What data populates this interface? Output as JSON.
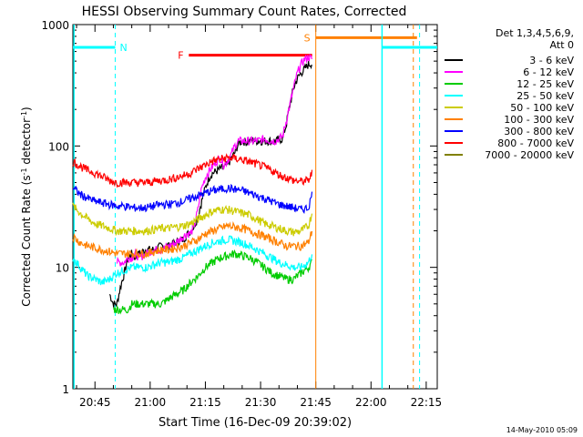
{
  "chart_data": {
    "type": "line",
    "title": "HESSI Observing Summary Count Rates, Corrected",
    "xlabel": "Start Time (16-Dec-09 20:39:02)",
    "ylabel": "Corrected Count Rate (s",
    "ylabel_sup1": "-1",
    "ylabel_mid": " detector",
    "ylabel_sup2": "-1",
    "ylabel_end": ")",
    "yscale": "log",
    "ylim": [
      1,
      1000
    ],
    "xlim_minutes": [
      0,
      99
    ],
    "x_units": "minutes since 20:39:02",
    "xticks": [
      {
        "t": 6,
        "label": "20:45"
      },
      {
        "t": 21,
        "label": "21:00"
      },
      {
        "t": 36,
        "label": "21:15"
      },
      {
        "t": 51,
        "label": "21:30"
      },
      {
        "t": 66,
        "label": "21:45"
      },
      {
        "t": 81,
        "label": "22:00"
      },
      {
        "t": 96,
        "label": "22:15"
      }
    ],
    "yticks": [
      {
        "v": 1,
        "label": "1"
      },
      {
        "v": 10,
        "label": "10"
      },
      {
        "v": 100,
        "label": "100"
      },
      {
        "v": 1000,
        "label": "1000"
      }
    ],
    "legend": {
      "header": [
        "Det 1,3,4,5,6,9,",
        "Att 0"
      ],
      "placement": "right"
    },
    "series": [
      {
        "name": "3 - 6 keV",
        "color": "#000000",
        "x": [
          10,
          11,
          12,
          13,
          14,
          15,
          16,
          17,
          18,
          20,
          22,
          24,
          26,
          28,
          30,
          32,
          33,
          34,
          35,
          36,
          37,
          38,
          39,
          40,
          41,
          42,
          43,
          44,
          45,
          46,
          47,
          48,
          49,
          50,
          51,
          52,
          53,
          54,
          55,
          56,
          57,
          58,
          59,
          60,
          61,
          62,
          63,
          64,
          65
        ],
        "y": [
          6,
          5,
          5,
          7,
          9,
          12,
          13,
          12,
          13,
          14,
          14,
          15,
          15,
          16,
          17,
          20,
          22,
          26,
          35,
          45,
          55,
          60,
          62,
          65,
          66,
          70,
          78,
          88,
          105,
          110,
          108,
          110,
          112,
          110,
          110,
          110,
          110,
          110,
          110,
          112,
          115,
          150,
          220,
          300,
          360,
          400,
          430,
          470,
          480
        ]
      },
      {
        "name": "6 - 12 keV",
        "color": "#ff00ff",
        "x": [
          12,
          13,
          14,
          15,
          16,
          17,
          18,
          20,
          22,
          24,
          26,
          28,
          30,
          31,
          32,
          33,
          34,
          35,
          36,
          37,
          38,
          39,
          40,
          41,
          42,
          43,
          44,
          45,
          46,
          47,
          48,
          49,
          50,
          51,
          52,
          53,
          54,
          55,
          56,
          57,
          58,
          59,
          60,
          61,
          62,
          63,
          64,
          65
        ],
        "y": [
          11,
          11,
          11,
          12,
          12,
          13,
          12,
          13,
          14,
          14,
          15,
          16,
          18,
          19,
          19,
          22,
          30,
          45,
          55,
          62,
          68,
          75,
          80,
          70,
          75,
          85,
          100,
          110,
          110,
          110,
          110,
          110,
          110,
          112,
          115,
          112,
          110,
          110,
          115,
          120,
          160,
          220,
          300,
          400,
          470,
          520,
          540,
          520
        ]
      },
      {
        "name": "12 - 25 keV",
        "color": "#00cc00",
        "x": [
          11,
          12,
          13,
          14,
          15,
          16,
          17,
          18,
          20,
          22,
          24,
          26,
          28,
          30,
          32,
          34,
          36,
          38,
          40,
          42,
          44,
          46,
          48,
          50,
          52,
          54,
          56,
          58,
          60,
          62,
          64,
          65
        ],
        "y": [
          4.5,
          4.5,
          4.5,
          4.5,
          4.5,
          5,
          5,
          5,
          5,
          5,
          5,
          5.5,
          6,
          6.5,
          7.5,
          8.5,
          10,
          11,
          12,
          12.5,
          13,
          12.5,
          12,
          11,
          10,
          9,
          8.5,
          8,
          8,
          9,
          10,
          11
        ]
      },
      {
        "name": "25 - 50 keV",
        "color": "#00ffff",
        "x": [
          0,
          2,
          4,
          6,
          8,
          10,
          12,
          14,
          16,
          18,
          20,
          22,
          24,
          26,
          28,
          30,
          32,
          34,
          36,
          38,
          40,
          42,
          44,
          46,
          48,
          50,
          52,
          54,
          56,
          58,
          60,
          62,
          64,
          65
        ],
        "y": [
          12,
          10,
          8.5,
          8,
          7.5,
          8,
          9,
          9.5,
          10,
          10,
          10,
          10.5,
          11,
          11,
          11.5,
          12,
          13,
          14,
          15,
          16,
          16.5,
          17,
          16.5,
          16,
          15,
          14,
          13,
          12,
          11,
          10.5,
          10,
          10,
          11,
          13
        ]
      },
      {
        "name": "50 - 100 keV",
        "color": "#cccc00",
        "x": [
          0,
          2,
          4,
          6,
          8,
          10,
          12,
          14,
          16,
          18,
          20,
          22,
          24,
          26,
          28,
          30,
          32,
          34,
          36,
          38,
          40,
          42,
          44,
          46,
          48,
          50,
          52,
          54,
          56,
          58,
          60,
          62,
          64,
          65
        ],
        "y": [
          32,
          28,
          25,
          23,
          22,
          21,
          20,
          20,
          20,
          20,
          20,
          20.5,
          21,
          21,
          21.5,
          22,
          23,
          25,
          27,
          29,
          30,
          30,
          29,
          28,
          27,
          25,
          23,
          22,
          21,
          20,
          19.5,
          20,
          22,
          28
        ]
      },
      {
        "name": "100 - 300 keV",
        "color": "#ff8000",
        "x": [
          0,
          2,
          4,
          6,
          8,
          10,
          12,
          14,
          16,
          18,
          20,
          22,
          24,
          26,
          28,
          30,
          32,
          34,
          36,
          38,
          40,
          42,
          44,
          46,
          48,
          50,
          52,
          54,
          56,
          58,
          60,
          62,
          64,
          65
        ],
        "y": [
          18,
          16,
          15,
          14.5,
          14,
          13.5,
          13,
          13,
          13,
          13,
          13,
          13.5,
          14,
          14,
          14.5,
          15,
          16,
          17,
          19,
          20,
          21,
          22,
          21.5,
          21,
          20,
          19,
          18,
          17,
          16,
          15,
          15,
          15,
          16,
          20
        ]
      },
      {
        "name": "300 - 800 keV",
        "color": "#0000ff",
        "x": [
          0,
          2,
          4,
          6,
          8,
          10,
          12,
          14,
          16,
          18,
          20,
          22,
          24,
          26,
          28,
          30,
          32,
          34,
          36,
          38,
          40,
          42,
          44,
          46,
          48,
          50,
          52,
          54,
          56,
          58,
          60,
          62,
          64,
          65
        ],
        "y": [
          45,
          40,
          37,
          35,
          34,
          33,
          32,
          32,
          31,
          31,
          31,
          32,
          33,
          33,
          34,
          35,
          37,
          39,
          41,
          43,
          44,
          45,
          44,
          43,
          41,
          39,
          37,
          35,
          33,
          32,
          31,
          30,
          31,
          40
        ]
      },
      {
        "name": "800 - 7000 keV",
        "color": "#ff0000",
        "x": [
          0,
          2,
          4,
          6,
          8,
          10,
          12,
          14,
          16,
          18,
          20,
          22,
          24,
          26,
          28,
          30,
          32,
          34,
          36,
          38,
          40,
          42,
          44,
          46,
          48,
          50,
          52,
          54,
          56,
          58,
          60,
          62,
          64,
          65
        ],
        "y": [
          75,
          68,
          63,
          60,
          56,
          52,
          50,
          50,
          50,
          50,
          50,
          51,
          52,
          53,
          55,
          57,
          60,
          65,
          70,
          75,
          78,
          80,
          79,
          77,
          74,
          71,
          67,
          63,
          58,
          55,
          52,
          51,
          52,
          60
        ]
      },
      {
        "name": "7000 - 20000 keV",
        "color": "#808000",
        "x": [],
        "y": []
      }
    ],
    "annotations": [
      {
        "label": "N",
        "color": "#00cccc",
        "t": 11.5
      },
      {
        "label": "F",
        "color": "#ff0000"
      },
      {
        "label": "S",
        "color": "#ff8000"
      }
    ]
  },
  "footer": {
    "timestamp": "14-May-2010 05:09"
  }
}
